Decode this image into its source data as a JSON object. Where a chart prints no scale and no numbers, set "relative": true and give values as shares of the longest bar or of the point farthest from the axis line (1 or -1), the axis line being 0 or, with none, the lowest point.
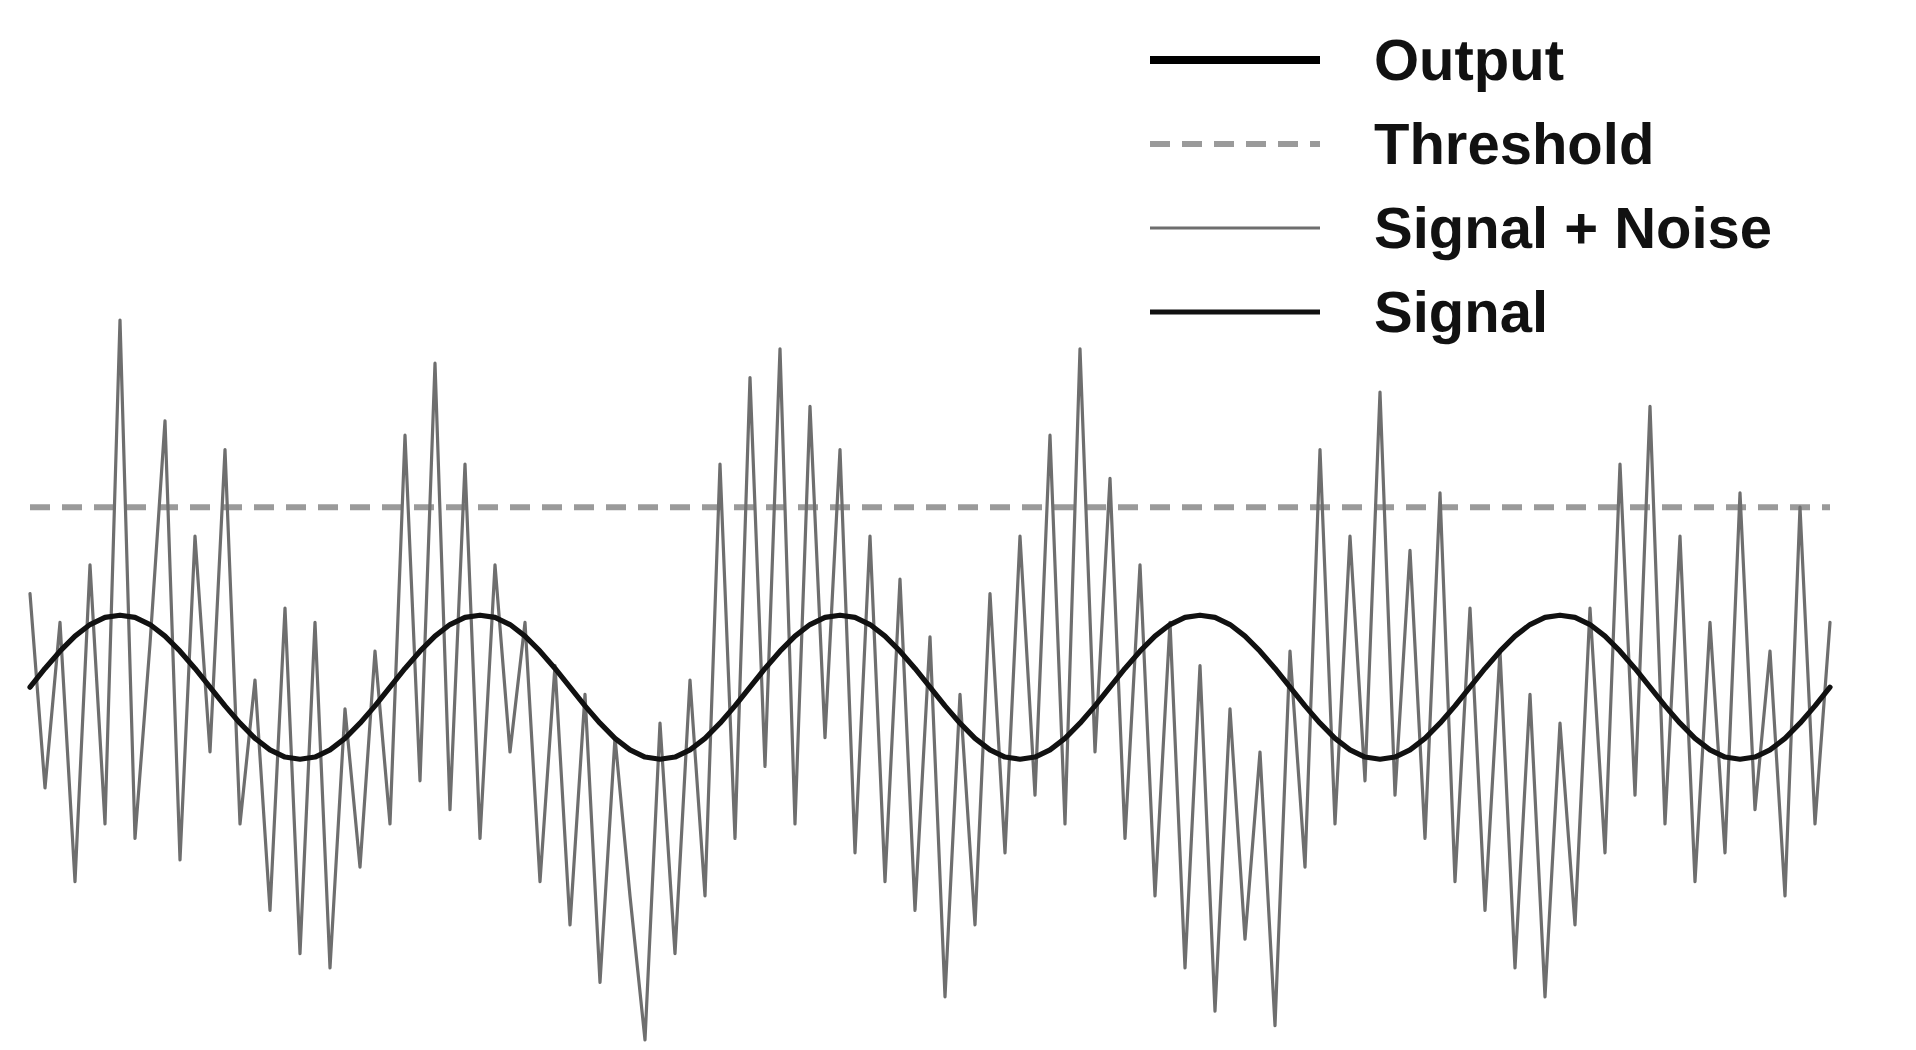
{
  "chart_data": {
    "type": "line",
    "relative": true,
    "legend": "top right",
    "categories": [
      null,
      null,
      null,
      null,
      null,
      null,
      null,
      null,
      null,
      null,
      null,
      null,
      null,
      null,
      null,
      null,
      null,
      null,
      null,
      null,
      null,
      null,
      null,
      null,
      null,
      null,
      null,
      null,
      null,
      null,
      null,
      null,
      null,
      null,
      null,
      null,
      null,
      null,
      null,
      null,
      null,
      null,
      null,
      null,
      null,
      null,
      null,
      null,
      null,
      null,
      null,
      null,
      null,
      null,
      null,
      null,
      null,
      null,
      null,
      null,
      null,
      null,
      null,
      null,
      null,
      null,
      null,
      null,
      null,
      null,
      null,
      null,
      null,
      null,
      null,
      null,
      null,
      null,
      null,
      null,
      null,
      null,
      null,
      null,
      null,
      null,
      null,
      null,
      null,
      null,
      null,
      null,
      null,
      null,
      null,
      null,
      null,
      null,
      null,
      null,
      null,
      null,
      null,
      null,
      null,
      null,
      null,
      null,
      null,
      null,
      null,
      null,
      null,
      null,
      null,
      null,
      null,
      null,
      null,
      null,
      null
    ],
    "series": [
      {
        "name": "Output",
        "color": "#000000",
        "values": [
          null,
          null,
          null,
          null,
          null,
          null,
          null,
          null,
          null,
          null,
          null,
          null,
          null,
          null,
          null,
          null,
          null,
          null,
          null,
          null,
          null,
          null,
          null,
          null,
          null,
          null,
          null,
          null,
          null,
          null,
          null,
          null,
          null,
          null,
          null,
          null,
          null,
          null,
          null,
          null,
          null,
          null,
          null,
          null,
          null,
          null,
          null,
          null,
          null,
          null,
          null,
          null,
          null,
          null,
          null,
          null,
          null,
          null,
          null,
          null,
          null,
          null,
          null,
          null,
          null,
          null,
          null,
          null,
          null,
          null,
          null,
          null,
          null,
          null,
          null,
          null,
          null,
          null,
          null,
          null,
          null,
          null,
          null,
          null,
          null,
          null,
          null,
          null,
          null,
          null,
          null,
          null,
          null,
          null,
          null,
          null,
          null,
          null,
          null,
          null,
          null,
          null,
          null,
          null,
          null,
          null,
          null,
          null,
          null,
          null,
          null,
          null,
          null,
          null,
          null,
          null,
          null,
          null,
          null,
          null,
          null
        ]
      },
      {
        "name": "Signal + Noise",
        "color": "#6e6e6e",
        "values": [
          0.62,
          0.35,
          0.58,
          0.22,
          0.66,
          0.3,
          1.0,
          0.28,
          0.55,
          0.86,
          0.25,
          0.7,
          0.4,
          0.82,
          0.3,
          0.5,
          0.18,
          0.6,
          0.12,
          0.58,
          0.1,
          0.46,
          0.24,
          0.54,
          0.3,
          0.84,
          0.36,
          0.94,
          0.32,
          0.8,
          0.28,
          0.66,
          0.4,
          0.58,
          0.22,
          0.52,
          0.16,
          0.48,
          0.08,
          0.42,
          0.2,
          0,
          0.44,
          0.12,
          0.5,
          0.2,
          0.8,
          0.28,
          0.92,
          0.38,
          0.96,
          0.3,
          0.88,
          0.42,
          0.82,
          0.26,
          0.7,
          0.22,
          0.64,
          0.18,
          0.56,
          0.06,
          0.48,
          0.16,
          0.62,
          0.26,
          0.7,
          0.34,
          0.84,
          0.3,
          0.96,
          0.4,
          0.78,
          0.28,
          0.66,
          0.2,
          0.58,
          0.1,
          0.52,
          0.04,
          0.46,
          0.14,
          0.4,
          0.02,
          0.54,
          0.24,
          0.82,
          0.3,
          0.7,
          0.36,
          0.9,
          0.34,
          0.68,
          0.28,
          0.76,
          0.22,
          0.6,
          0.18,
          0.54,
          0.1,
          0.48,
          0.06,
          0.44,
          0.16,
          0.6,
          0.26,
          0.8,
          0.34,
          0.88,
          0.3,
          0.7,
          0.22,
          0.58,
          0.26,
          0.76,
          0.32,
          0.54,
          0.2,
          0.74,
          0.3,
          0.58
        ]
      },
      {
        "name": "Signal",
        "color": "#111111",
        "values": [
          0.49,
          0.516,
          0.54,
          0.561,
          0.577,
          0.587,
          0.59,
          0.587,
          0.577,
          0.561,
          0.54,
          0.516,
          0.49,
          0.464,
          0.44,
          0.419,
          0.403,
          0.393,
          0.39,
          0.393,
          0.403,
          0.419,
          0.44,
          0.464,
          0.49,
          0.516,
          0.54,
          0.561,
          0.577,
          0.587,
          0.59,
          0.587,
          0.577,
          0.561,
          0.54,
          0.516,
          0.49,
          0.464,
          0.44,
          0.419,
          0.403,
          0.393,
          0.39,
          0.393,
          0.403,
          0.419,
          0.44,
          0.464,
          0.49,
          0.516,
          0.54,
          0.561,
          0.577,
          0.587,
          0.59,
          0.587,
          0.577,
          0.561,
          0.54,
          0.516,
          0.49,
          0.464,
          0.44,
          0.419,
          0.403,
          0.393,
          0.39,
          0.393,
          0.403,
          0.419,
          0.44,
          0.464,
          0.49,
          0.516,
          0.54,
          0.561,
          0.577,
          0.587,
          0.59,
          0.587,
          0.577,
          0.561,
          0.54,
          0.516,
          0.49,
          0.464,
          0.44,
          0.419,
          0.403,
          0.393,
          0.39,
          0.393,
          0.403,
          0.419,
          0.44,
          0.464,
          0.49,
          0.516,
          0.54,
          0.561,
          0.577,
          0.587,
          0.59,
          0.587,
          0.577,
          0.561,
          0.54,
          0.516,
          0.49,
          0.464,
          0.44,
          0.419,
          0.403,
          0.393,
          0.39,
          0.393,
          0.403,
          0.419,
          0.44,
          0.464,
          0.49
        ]
      }
    ],
    "ref_lines": [
      {
        "axis": "y",
        "value": 0.74,
        "label": "Threshold",
        "color": "#9a9a9a",
        "line_style": "dashed"
      }
    ]
  }
}
